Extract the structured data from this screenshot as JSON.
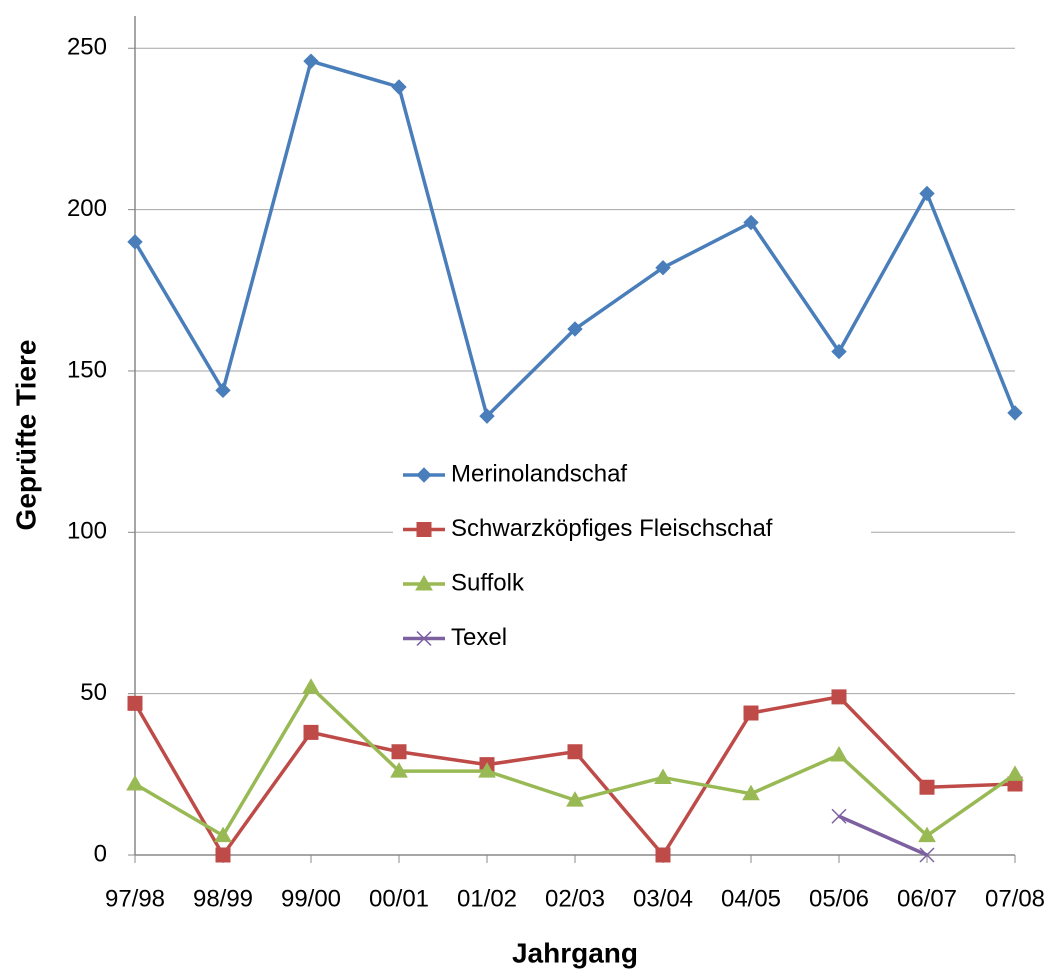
{
  "chart_data": {
    "type": "line",
    "x_label": "Jahrgang",
    "y_label": "Geprüfte Tiere",
    "categories": [
      "97/98",
      "98/99",
      "99/00",
      "00/01",
      "01/02",
      "02/03",
      "03/04",
      "04/05",
      "05/06",
      "06/07",
      "07/08"
    ],
    "series": [
      {
        "name": "Merinolandschaf",
        "color": "#4a7ebb",
        "marker": "diamond",
        "values": [
          190,
          144,
          246,
          238,
          136,
          163,
          182,
          196,
          156,
          205,
          137
        ]
      },
      {
        "name": "Schwarzköpfiges Fleischschaf",
        "color": "#be4b48",
        "marker": "square",
        "values": [
          47,
          0,
          38,
          32,
          28,
          32,
          0,
          44,
          49,
          21,
          22
        ]
      },
      {
        "name": "Suffolk",
        "color": "#98b954",
        "marker": "triangle",
        "values": [
          22,
          6,
          52,
          26,
          26,
          17,
          24,
          19,
          31,
          6,
          25
        ]
      },
      {
        "name": "Texel",
        "color": "#7d60a0",
        "marker": "x",
        "values": [
          null,
          null,
          null,
          null,
          null,
          null,
          null,
          null,
          12,
          0,
          null
        ]
      }
    ],
    "ylim": [
      0,
      260
    ],
    "yticks": [
      0,
      50,
      100,
      150,
      200,
      250
    ],
    "grid": true,
    "legend": "center"
  }
}
